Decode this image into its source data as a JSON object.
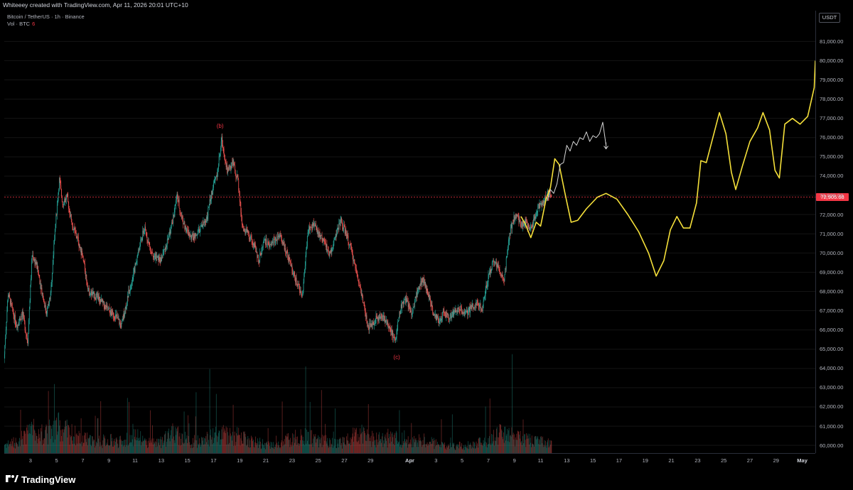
{
  "header": {
    "credit": "Whiteeey created with TradingView.com, Apr 11, 2026 20:01 UTC+10"
  },
  "legend": {
    "symbol": "Bitcoin / TetherUS · 1h · Binance",
    "volume_label": "Vol · BTC",
    "volume_value": "6"
  },
  "price_axis": {
    "unit": "USDT",
    "last_price": "72,905.68"
  },
  "footer": {
    "brand": "TradingView"
  },
  "colors": {
    "up": "#26a69a",
    "down": "#ef5350",
    "projection": "#f5e03a",
    "ghost_path": "#d6d6d6",
    "last_price": "#f23645",
    "annotation": "#f23645"
  },
  "chart_data": {
    "type": "candlestick",
    "y_axis": {
      "ticks": [
        60000,
        61000,
        62000,
        63000,
        64000,
        65000,
        66000,
        67000,
        68000,
        69000,
        70000,
        71000,
        72000,
        73000,
        74000,
        75000,
        76000,
        77000,
        78000,
        79000,
        80000,
        81000
      ],
      "tick_labels": [
        "60,000.00",
        "61,000.00",
        "62,000.00",
        "63,000.00",
        "64,000.00",
        "65,000.00",
        "66,000.00",
        "67,000.00",
        "68,000.00",
        "69,000.00",
        "70,000.00",
        "71,000.00",
        "72,000.00",
        "73,000.00",
        "74,000.00",
        "75,000.00",
        "76,000.00",
        "77,000.00",
        "78,000.00",
        "79,000.00",
        "80,000.00",
        "81,000.00"
      ],
      "range": [
        59600,
        82600
      ]
    },
    "x_axis": {
      "unit": "day",
      "range": [
        "2026-03-01T00:00",
        "2026-05-02T00:00"
      ],
      "ticks": [
        {
          "label": "3",
          "date": "2026-03-03"
        },
        {
          "label": "5",
          "date": "2026-03-05"
        },
        {
          "label": "7",
          "date": "2026-03-07"
        },
        {
          "label": "9",
          "date": "2026-03-09"
        },
        {
          "label": "11",
          "date": "2026-03-11"
        },
        {
          "label": "13",
          "date": "2026-03-13"
        },
        {
          "label": "15",
          "date": "2026-03-15"
        },
        {
          "label": "17",
          "date": "2026-03-17"
        },
        {
          "label": "19",
          "date": "2026-03-19"
        },
        {
          "label": "21",
          "date": "2026-03-21"
        },
        {
          "label": "23",
          "date": "2026-03-23"
        },
        {
          "label": "25",
          "date": "2026-03-25"
        },
        {
          "label": "27",
          "date": "2026-03-27"
        },
        {
          "label": "29",
          "date": "2026-03-29"
        },
        {
          "label": "Apr",
          "date": "2026-04-01",
          "major": true
        },
        {
          "label": "3",
          "date": "2026-04-03"
        },
        {
          "label": "5",
          "date": "2026-04-05"
        },
        {
          "label": "7",
          "date": "2026-04-07"
        },
        {
          "label": "9",
          "date": "2026-04-09"
        },
        {
          "label": "11",
          "date": "2026-04-11"
        },
        {
          "label": "13",
          "date": "2026-04-13"
        },
        {
          "label": "15",
          "date": "2026-04-15"
        },
        {
          "label": "17",
          "date": "2026-04-17"
        },
        {
          "label": "19",
          "date": "2026-04-19"
        },
        {
          "label": "21",
          "date": "2026-04-21"
        },
        {
          "label": "23",
          "date": "2026-04-23"
        },
        {
          "label": "25",
          "date": "2026-04-25"
        },
        {
          "label": "27",
          "date": "2026-04-27"
        },
        {
          "label": "29",
          "date": "2026-04-29"
        },
        {
          "label": "May",
          "date": "2026-05-01",
          "major": true
        }
      ]
    },
    "last_price": 72905.68,
    "price_path": [
      {
        "t": "2026-03-01T00:00",
        "p": 64300
      },
      {
        "t": "2026-03-01T08:00",
        "p": 67900
      },
      {
        "t": "2026-03-01T16:00",
        "p": 67000
      },
      {
        "t": "2026-03-02T00:00",
        "p": 66200
      },
      {
        "t": "2026-03-02T10:00",
        "p": 66900
      },
      {
        "t": "2026-03-02T20:00",
        "p": 65400
      },
      {
        "t": "2026-03-03T04:00",
        "p": 69900
      },
      {
        "t": "2026-03-03T12:00",
        "p": 69400
      },
      {
        "t": "2026-03-03T20:00",
        "p": 68300
      },
      {
        "t": "2026-03-04T06:00",
        "p": 66900
      },
      {
        "t": "2026-03-04T14:00",
        "p": 67800
      },
      {
        "t": "2026-03-04T22:00",
        "p": 71200
      },
      {
        "t": "2026-03-05T06:00",
        "p": 73800
      },
      {
        "t": "2026-03-05T12:00",
        "p": 72600
      },
      {
        "t": "2026-03-05T20:00",
        "p": 72900
      },
      {
        "t": "2026-03-06T06:00",
        "p": 71400
      },
      {
        "t": "2026-03-06T16:00",
        "p": 70700
      },
      {
        "t": "2026-03-07T02:00",
        "p": 69600
      },
      {
        "t": "2026-03-07T12:00",
        "p": 68000
      },
      {
        "t": "2026-03-07T22:00",
        "p": 67800
      },
      {
        "t": "2026-03-08T08:00",
        "p": 67600
      },
      {
        "t": "2026-03-08T18:00",
        "p": 67200
      },
      {
        "t": "2026-03-09T04:00",
        "p": 66900
      },
      {
        "t": "2026-03-09T14:00",
        "p": 66700
      },
      {
        "t": "2026-03-10T00:00",
        "p": 66200
      },
      {
        "t": "2026-03-10T12:00",
        "p": 67800
      },
      {
        "t": "2026-03-10T22:00",
        "p": 68900
      },
      {
        "t": "2026-03-11T08:00",
        "p": 70200
      },
      {
        "t": "2026-03-11T18:00",
        "p": 71300
      },
      {
        "t": "2026-03-12T04:00",
        "p": 70300
      },
      {
        "t": "2026-03-12T14:00",
        "p": 69800
      },
      {
        "t": "2026-03-13T00:00",
        "p": 69600
      },
      {
        "t": "2026-03-13T10:00",
        "p": 70400
      },
      {
        "t": "2026-03-13T20:00",
        "p": 71400
      },
      {
        "t": "2026-03-14T06:00",
        "p": 73000
      },
      {
        "t": "2026-03-14T14:00",
        "p": 71900
      },
      {
        "t": "2026-03-15T00:00",
        "p": 71100
      },
      {
        "t": "2026-03-15T12:00",
        "p": 70800
      },
      {
        "t": "2026-03-16T00:00",
        "p": 71200
      },
      {
        "t": "2026-03-16T12:00",
        "p": 71800
      },
      {
        "t": "2026-03-16T22:00",
        "p": 73200
      },
      {
        "t": "2026-03-17T08:00",
        "p": 74200
      },
      {
        "t": "2026-03-17T16:00",
        "p": 75900
      },
      {
        "t": "2026-03-18T02:00",
        "p": 74300
      },
      {
        "t": "2026-03-18T12:00",
        "p": 74700
      },
      {
        "t": "2026-03-18T22:00",
        "p": 73700
      },
      {
        "t": "2026-03-19T06:00",
        "p": 71300
      },
      {
        "t": "2026-03-19T16:00",
        "p": 71000
      },
      {
        "t": "2026-03-20T02:00",
        "p": 70500
      },
      {
        "t": "2026-03-20T12:00",
        "p": 69600
      },
      {
        "t": "2026-03-20T22:00",
        "p": 70700
      },
      {
        "t": "2026-03-21T08:00",
        "p": 70300
      },
      {
        "t": "2026-03-21T18:00",
        "p": 70700
      },
      {
        "t": "2026-03-22T04:00",
        "p": 70800
      },
      {
        "t": "2026-03-22T14:00",
        "p": 70100
      },
      {
        "t": "2026-03-23T00:00",
        "p": 69200
      },
      {
        "t": "2026-03-23T10:00",
        "p": 68400
      },
      {
        "t": "2026-03-23T20:00",
        "p": 67800
      },
      {
        "t": "2026-03-24T06:00",
        "p": 71200
      },
      {
        "t": "2026-03-24T16:00",
        "p": 71500
      },
      {
        "t": "2026-03-25T02:00",
        "p": 71000
      },
      {
        "t": "2026-03-25T12:00",
        "p": 70600
      },
      {
        "t": "2026-03-25T22:00",
        "p": 69900
      },
      {
        "t": "2026-03-26T08:00",
        "p": 70800
      },
      {
        "t": "2026-03-26T18:00",
        "p": 71700
      },
      {
        "t": "2026-03-27T04:00",
        "p": 71000
      },
      {
        "t": "2026-03-27T14:00",
        "p": 70100
      },
      {
        "t": "2026-03-28T00:00",
        "p": 68900
      },
      {
        "t": "2026-03-28T10:00",
        "p": 67700
      },
      {
        "t": "2026-03-28T20:00",
        "p": 66100
      },
      {
        "t": "2026-03-29T06:00",
        "p": 66400
      },
      {
        "t": "2026-03-29T16:00",
        "p": 66700
      },
      {
        "t": "2026-03-30T02:00",
        "p": 66600
      },
      {
        "t": "2026-03-30T12:00",
        "p": 66200
      },
      {
        "t": "2026-03-30T22:00",
        "p": 65400
      },
      {
        "t": "2026-03-31T08:00",
        "p": 67200
      },
      {
        "t": "2026-03-31T18:00",
        "p": 67600
      },
      {
        "t": "2026-04-01T04:00",
        "p": 66800
      },
      {
        "t": "2026-04-01T14:00",
        "p": 67900
      },
      {
        "t": "2026-04-02T00:00",
        "p": 68700
      },
      {
        "t": "2026-04-02T10:00",
        "p": 68000
      },
      {
        "t": "2026-04-02T20:00",
        "p": 66800
      },
      {
        "t": "2026-04-03T06:00",
        "p": 66500
      },
      {
        "t": "2026-04-03T16:00",
        "p": 66900
      },
      {
        "t": "2026-04-04T02:00",
        "p": 66700
      },
      {
        "t": "2026-04-04T12:00",
        "p": 67000
      },
      {
        "t": "2026-04-04T22:00",
        "p": 67100
      },
      {
        "t": "2026-04-05T08:00",
        "p": 66800
      },
      {
        "t": "2026-04-05T18:00",
        "p": 67200
      },
      {
        "t": "2026-04-06T04:00",
        "p": 67400
      },
      {
        "t": "2026-04-06T14:00",
        "p": 67100
      },
      {
        "t": "2026-04-07T00:00",
        "p": 68600
      },
      {
        "t": "2026-04-07T10:00",
        "p": 69500
      },
      {
        "t": "2026-04-07T20:00",
        "p": 69200
      },
      {
        "t": "2026-04-08T06:00",
        "p": 68600
      },
      {
        "t": "2026-04-08T16:00",
        "p": 71000
      },
      {
        "t": "2026-04-09T02:00",
        "p": 72000
      },
      {
        "t": "2026-04-09T12:00",
        "p": 71500
      },
      {
        "t": "2026-04-09T22:00",
        "p": 71600
      },
      {
        "t": "2026-04-10T08:00",
        "p": 71200
      },
      {
        "t": "2026-04-10T18:00",
        "p": 72300
      },
      {
        "t": "2026-04-11T04:00",
        "p": 72600
      },
      {
        "t": "2026-04-11T14:00",
        "p": 73100
      },
      {
        "t": "2026-04-11T20:00",
        "p": 72900
      }
    ],
    "volume_profile": [
      {
        "t": "2026-03-01T00:00",
        "v": 0.25
      },
      {
        "t": "2026-03-02T00:00",
        "v": 0.3
      },
      {
        "t": "2026-03-03T00:00",
        "v": 0.65
      },
      {
        "t": "2026-03-04T00:00",
        "v": 0.5
      },
      {
        "t": "2026-03-05T00:00",
        "v": 0.75
      },
      {
        "t": "2026-03-06T00:00",
        "v": 0.55
      },
      {
        "t": "2026-03-07T00:00",
        "v": 0.4
      },
      {
        "t": "2026-03-08T00:00",
        "v": 0.3
      },
      {
        "t": "2026-03-09T00:00",
        "v": 0.35
      },
      {
        "t": "2026-03-10T00:00",
        "v": 0.3
      },
      {
        "t": "2026-03-11T00:00",
        "v": 0.45
      },
      {
        "t": "2026-03-12T00:00",
        "v": 0.3
      },
      {
        "t": "2026-03-13T00:00",
        "v": 0.3
      },
      {
        "t": "2026-03-14T00:00",
        "v": 0.55
      },
      {
        "t": "2026-03-15T00:00",
        "v": 0.35
      },
      {
        "t": "2026-03-16T00:00",
        "v": 0.3
      },
      {
        "t": "2026-03-17T00:00",
        "v": 0.45
      },
      {
        "t": "2026-03-18T00:00",
        "v": 0.5
      },
      {
        "t": "2026-03-19T00:00",
        "v": 0.45
      },
      {
        "t": "2026-03-20T00:00",
        "v": 0.3
      },
      {
        "t": "2026-03-21T00:00",
        "v": 0.25
      },
      {
        "t": "2026-03-22T00:00",
        "v": 0.25
      },
      {
        "t": "2026-03-23T00:00",
        "v": 0.4
      },
      {
        "t": "2026-03-24T00:00",
        "v": 0.45
      },
      {
        "t": "2026-03-25T00:00",
        "v": 0.35
      },
      {
        "t": "2026-03-26T00:00",
        "v": 0.3
      },
      {
        "t": "2026-03-27T00:00",
        "v": 0.3
      },
      {
        "t": "2026-03-28T00:00",
        "v": 0.55
      },
      {
        "t": "2026-03-29T00:00",
        "v": 0.4
      },
      {
        "t": "2026-03-30T00:00",
        "v": 0.35
      },
      {
        "t": "2026-03-31T00:00",
        "v": 0.4
      },
      {
        "t": "2026-04-01T00:00",
        "v": 0.3
      },
      {
        "t": "2026-04-02T00:00",
        "v": 0.35
      },
      {
        "t": "2026-04-03T00:00",
        "v": 0.25
      },
      {
        "t": "2026-04-04T00:00",
        "v": 0.2
      },
      {
        "t": "2026-04-05T00:00",
        "v": 0.2
      },
      {
        "t": "2026-04-06T00:00",
        "v": 0.25
      },
      {
        "t": "2026-04-07T00:00",
        "v": 0.35
      },
      {
        "t": "2026-04-08T00:00",
        "v": 0.55
      },
      {
        "t": "2026-04-09T00:00",
        "v": 0.45
      },
      {
        "t": "2026-04-10T00:00",
        "v": 0.35
      },
      {
        "t": "2026-04-11T00:00",
        "v": 0.3
      },
      {
        "t": "2026-04-11T20:00",
        "v": 0.25
      }
    ],
    "projection_path": [
      {
        "t": "2026-04-09T12:00",
        "p": 71900
      },
      {
        "t": "2026-04-09T20:00",
        "p": 71500
      },
      {
        "t": "2026-04-10T06:00",
        "p": 70800
      },
      {
        "t": "2026-04-10T16:00",
        "p": 71600
      },
      {
        "t": "2026-04-11T00:00",
        "p": 71400
      },
      {
        "t": "2026-04-11T10:00",
        "p": 72800
      },
      {
        "t": "2026-04-11T18:00",
        "p": 73400
      },
      {
        "t": "2026-04-12T02:00",
        "p": 74900
      },
      {
        "t": "2026-04-12T10:00",
        "p": 74600
      },
      {
        "t": "2026-04-12T20:00",
        "p": 73200
      },
      {
        "t": "2026-04-13T08:00",
        "p": 71600
      },
      {
        "t": "2026-04-13T20:00",
        "p": 71700
      },
      {
        "t": "2026-04-14T12:00",
        "p": 72300
      },
      {
        "t": "2026-04-15T08:00",
        "p": 72900
      },
      {
        "t": "2026-04-16T00:00",
        "p": 73100
      },
      {
        "t": "2026-04-16T20:00",
        "p": 72800
      },
      {
        "t": "2026-04-17T16:00",
        "p": 72000
      },
      {
        "t": "2026-04-18T12:00",
        "p": 71100
      },
      {
        "t": "2026-04-19T06:00",
        "p": 70000
      },
      {
        "t": "2026-04-19T20:00",
        "p": 68800
      },
      {
        "t": "2026-04-20T10:00",
        "p": 69600
      },
      {
        "t": "2026-04-20T22:00",
        "p": 71200
      },
      {
        "t": "2026-04-21T10:00",
        "p": 71900
      },
      {
        "t": "2026-04-21T22:00",
        "p": 71300
      },
      {
        "t": "2026-04-22T10:00",
        "p": 71300
      },
      {
        "t": "2026-04-22T22:00",
        "p": 72600
      },
      {
        "t": "2026-04-23T06:00",
        "p": 74800
      },
      {
        "t": "2026-04-23T16:00",
        "p": 74700
      },
      {
        "t": "2026-04-24T04:00",
        "p": 76000
      },
      {
        "t": "2026-04-24T16:00",
        "p": 77300
      },
      {
        "t": "2026-04-25T04:00",
        "p": 76200
      },
      {
        "t": "2026-04-25T14:00",
        "p": 74200
      },
      {
        "t": "2026-04-25T22:00",
        "p": 73300
      },
      {
        "t": "2026-04-26T10:00",
        "p": 74500
      },
      {
        "t": "2026-04-27T00:00",
        "p": 75800
      },
      {
        "t": "2026-04-27T14:00",
        "p": 76500
      },
      {
        "t": "2026-04-28T00:00",
        "p": 77300
      },
      {
        "t": "2026-04-28T12:00",
        "p": 76400
      },
      {
        "t": "2026-04-28T22:00",
        "p": 74300
      },
      {
        "t": "2026-04-29T06:00",
        "p": 73900
      },
      {
        "t": "2026-04-29T16:00",
        "p": 76700
      },
      {
        "t": "2026-04-30T06:00",
        "p": 77000
      },
      {
        "t": "2026-04-30T20:00",
        "p": 76700
      },
      {
        "t": "2026-05-01T10:00",
        "p": 77100
      },
      {
        "t": "2026-05-01T22:00",
        "p": 78600
      },
      {
        "t": "2026-05-02T00:00",
        "p": 80000
      }
    ],
    "ghost_path": [
      {
        "t": "2026-04-11T12:00",
        "p": 72700
      },
      {
        "t": "2026-04-11T18:00",
        "p": 73300
      },
      {
        "t": "2026-04-12T00:00",
        "p": 73100
      },
      {
        "t": "2026-04-12T06:00",
        "p": 73600
      },
      {
        "t": "2026-04-12T12:00",
        "p": 74600
      },
      {
        "t": "2026-04-12T18:00",
        "p": 74700
      },
      {
        "t": "2026-04-13T00:00",
        "p": 75600
      },
      {
        "t": "2026-04-13T06:00",
        "p": 75300
      },
      {
        "t": "2026-04-13T12:00",
        "p": 75800
      },
      {
        "t": "2026-04-13T18:00",
        "p": 75600
      },
      {
        "t": "2026-04-14T00:00",
        "p": 76000
      },
      {
        "t": "2026-04-14T06:00",
        "p": 75900
      },
      {
        "t": "2026-04-14T12:00",
        "p": 76300
      },
      {
        "t": "2026-04-14T18:00",
        "p": 75800
      },
      {
        "t": "2026-04-15T00:00",
        "p": 76100
      },
      {
        "t": "2026-04-15T06:00",
        "p": 76000
      },
      {
        "t": "2026-04-15T12:00",
        "p": 76200
      },
      {
        "t": "2026-04-15T18:00",
        "p": 76800
      },
      {
        "t": "2026-04-16T00:00",
        "p": 75600
      }
    ],
    "annotations": [
      {
        "text": "(b)",
        "t": "2026-03-17T12:00",
        "p": 76500
      },
      {
        "text": "(c)",
        "t": "2026-03-31T00:00",
        "p": 64500
      }
    ]
  }
}
